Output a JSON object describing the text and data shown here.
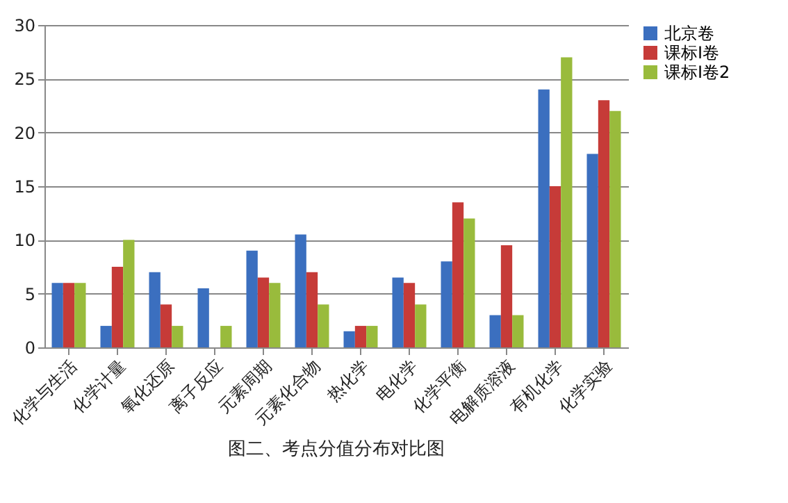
{
  "chart_data": {
    "type": "bar",
    "categories": [
      "化学与生活",
      "化学计量",
      "氧化还原",
      "离子反应",
      "元素周期",
      "元素化合物",
      "热化学",
      "电化学",
      "化学平衡",
      "电解质溶液",
      "有机化学",
      "化学实验"
    ],
    "series": [
      {
        "name": "北京卷",
        "color": "#3b6fbf",
        "values": [
          6,
          2,
          7,
          5.5,
          9,
          10.5,
          1.5,
          6.5,
          8,
          3,
          24,
          18
        ]
      },
      {
        "name": "课标I卷",
        "color": "#c63b38",
        "values": [
          6,
          7.5,
          4,
          0,
          6.5,
          7,
          2,
          6,
          13.5,
          9.5,
          15,
          23
        ]
      },
      {
        "name": "课标I卷2",
        "color": "#99bb3c",
        "values": [
          6,
          10,
          2,
          2,
          6,
          4,
          2,
          4,
          12,
          3,
          27,
          22
        ]
      }
    ],
    "ylim": [
      0,
      30
    ],
    "yticks": [
      0,
      5,
      10,
      15,
      20,
      25,
      30
    ],
    "grid": "y",
    "legend": "right",
    "annotations": [
      "图二、考点分值分布对比图"
    ]
  }
}
